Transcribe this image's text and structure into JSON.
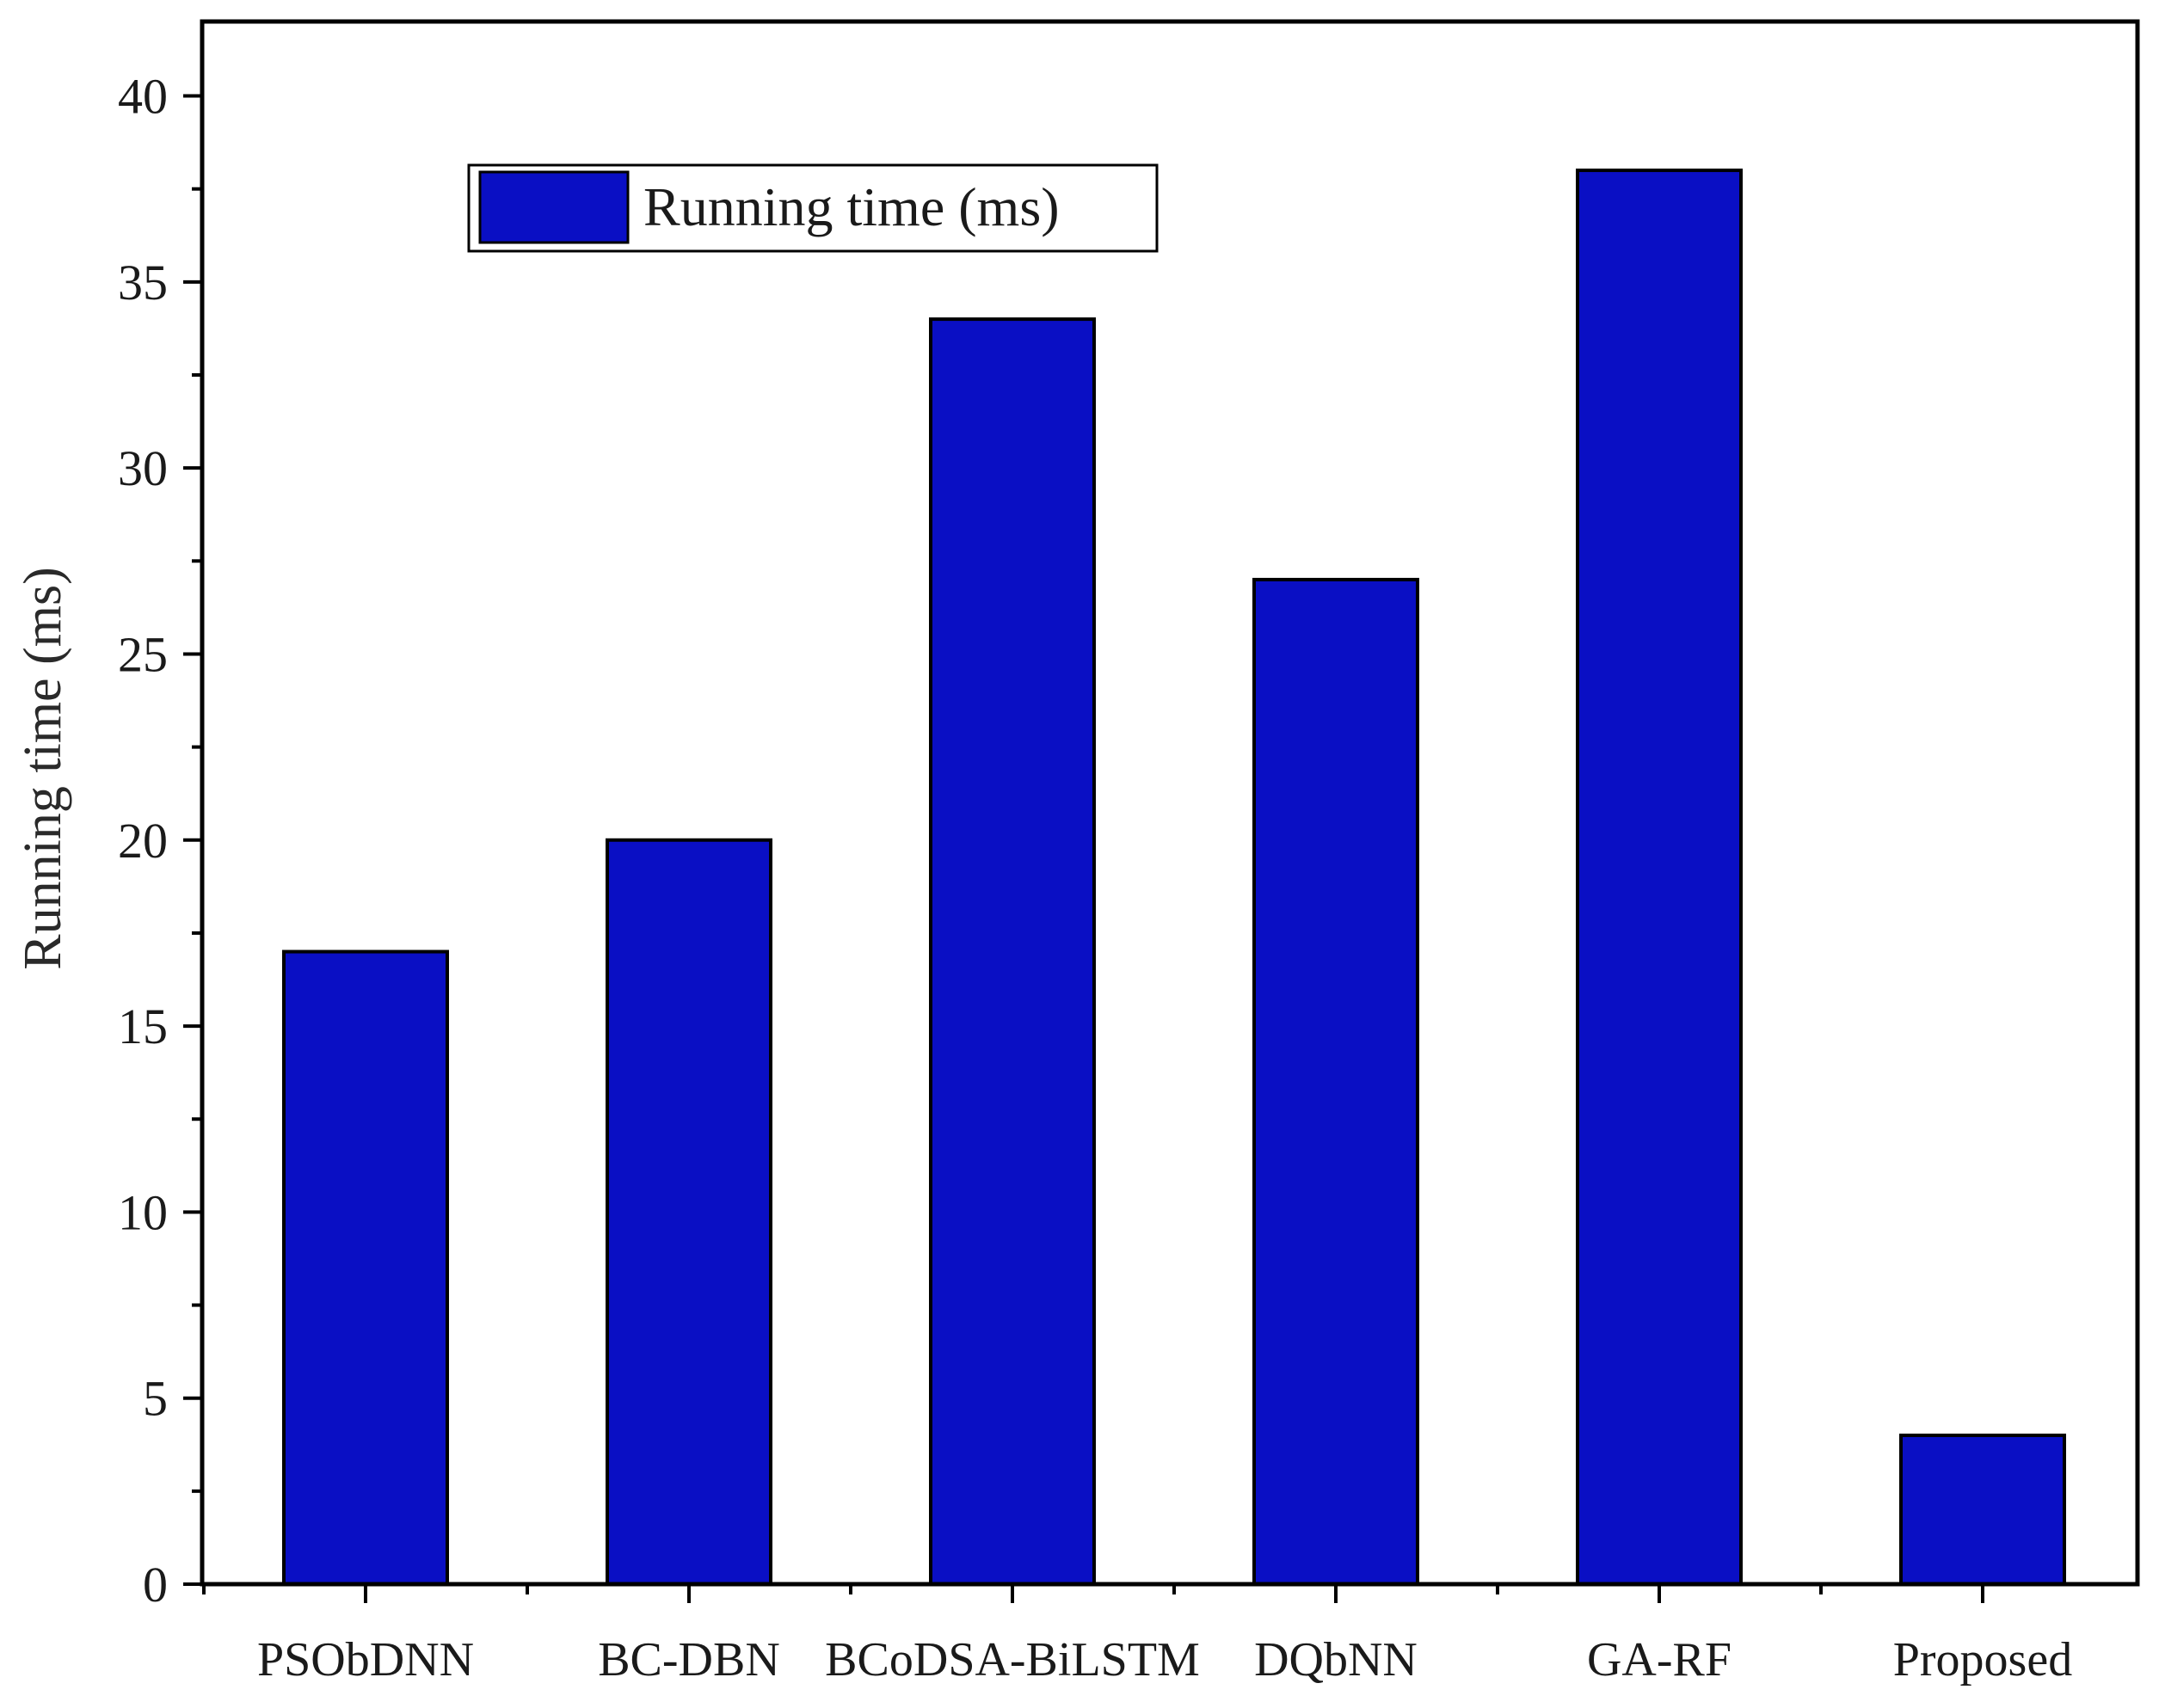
{
  "chart_data": {
    "type": "bar",
    "categories": [
      "PSObDNN",
      "BC-DBN",
      "BCoDSA-BiLSTM",
      "DQbNN",
      "GA-RF",
      "Proposed"
    ],
    "series": [
      {
        "name": "Running time (ms)",
        "values": [
          17,
          20,
          34,
          27,
          38,
          4
        ]
      }
    ],
    "xlabel": "",
    "ylabel": "Running time (ms)",
    "ylim": [
      0,
      42
    ],
    "yticks": [
      0,
      5,
      10,
      15,
      20,
      25,
      30,
      35,
      40
    ],
    "legend": {
      "position": "top-left",
      "label": "Running time (ms)"
    },
    "grid": false,
    "colors": {
      "bar": "#0a0fc4",
      "bar_stroke": "#000000",
      "axis": "#000000"
    }
  }
}
